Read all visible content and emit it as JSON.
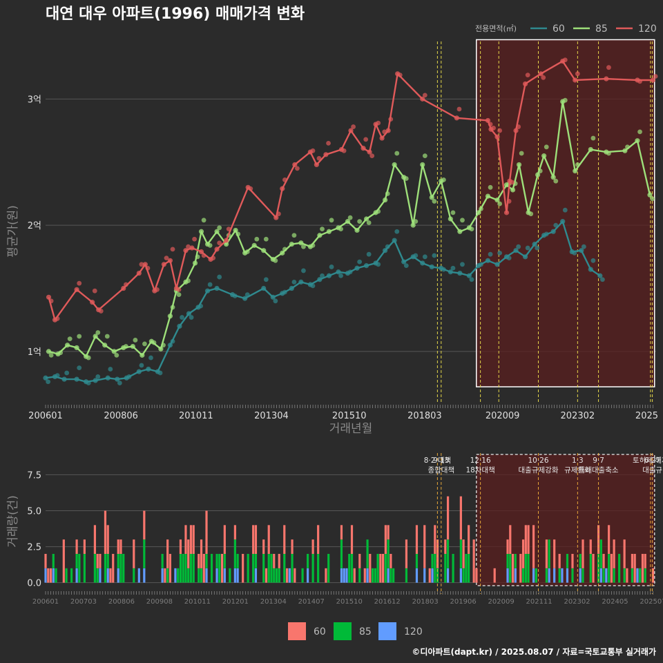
{
  "title": "대연 대우 아파트(1996) 매매가격 변화",
  "footer": "©디아파트(dapt.kr) / 2025.08.07 / 자료=국토교통부 실거래가",
  "legend_title": "전용면적(㎡)",
  "colors": {
    "bg": "#2b2b2b",
    "grid": "#575757",
    "line_60": "#2f8a8f",
    "line_85": "#9ee07a",
    "line_120": "#e05a5a",
    "bar_60": "#f8766d",
    "bar_85": "#00ba38",
    "bar_120": "#619cff",
    "highlight": "#5a1f1f",
    "policy": "#e6d84a"
  },
  "chart_data": [
    {
      "type": "line",
      "title": "대연 대우 아파트(1996) 매매가격 변화",
      "xlabel": "거래년월",
      "ylabel": "평균가(원)",
      "x_ticks": [
        "200601",
        "200806",
        "201011",
        "201304",
        "201510",
        "201803",
        "202009",
        "202302",
        "2025"
      ],
      "y_ticks": [
        {
          "value": 1,
          "label": "1억"
        },
        {
          "value": 2,
          "label": "2억"
        },
        {
          "value": 3,
          "label": "3억"
        }
      ],
      "ylim": [
        0.6,
        3.5
      ],
      "xlim": [
        2006.0,
        2025.6
      ],
      "grid": true,
      "legend_position": "top-right",
      "highlight_box": {
        "from": 2019.83,
        "to": 2025.55,
        "ymin": 0.72,
        "ymax": 3.47
      },
      "policy_lines": [
        2018.58,
        2018.7,
        2019.96,
        2020.55,
        2021.82,
        2023.08,
        2023.75,
        2025.42,
        2025.48
      ],
      "series": [
        {
          "name": "60",
          "color_key": "line_60",
          "x": [
            2006.0,
            2006.3,
            2006.6,
            2007.0,
            2007.3,
            2007.6,
            2008.0,
            2008.3,
            2008.6,
            2009.0,
            2009.3,
            2009.6,
            2010.0,
            2010.3,
            2010.6,
            2010.9,
            2011.2,
            2011.5,
            2012.0,
            2012.4,
            2013.0,
            2013.3,
            2013.6,
            2013.9,
            2014.2,
            2014.5,
            2014.8,
            2015.1,
            2015.4,
            2015.7,
            2016.0,
            2016.3,
            2016.6,
            2016.9,
            2017.2,
            2017.5,
            2017.8,
            2018.1,
            2018.4,
            2018.7,
            2019.0,
            2019.3,
            2019.6,
            2019.9,
            2020.2,
            2020.5,
            2020.8,
            2021.1,
            2021.4,
            2021.7,
            2022.0,
            2022.3,
            2022.6,
            2022.9,
            2023.2,
            2023.5,
            2023.8
          ],
          "y": [
            0.79,
            0.8,
            0.78,
            0.78,
            0.76,
            0.77,
            0.79,
            0.78,
            0.79,
            0.84,
            0.86,
            0.84,
            1.05,
            1.2,
            1.3,
            1.35,
            1.48,
            1.5,
            1.45,
            1.42,
            1.5,
            1.43,
            1.46,
            1.5,
            1.55,
            1.53,
            1.57,
            1.6,
            1.63,
            1.62,
            1.66,
            1.68,
            1.7,
            1.8,
            1.88,
            1.71,
            1.75,
            1.7,
            1.67,
            1.66,
            1.63,
            1.62,
            1.6,
            1.68,
            1.72,
            1.69,
            1.75,
            1.8,
            1.75,
            1.85,
            1.92,
            1.95,
            2.03,
            1.79,
            1.8,
            1.65,
            1.6
          ]
        },
        {
          "name": "85",
          "color_key": "line_85",
          "x": [
            2006.1,
            2006.4,
            2006.7,
            2007.0,
            2007.3,
            2007.6,
            2007.9,
            2008.2,
            2008.5,
            2008.8,
            2009.1,
            2009.4,
            2009.7,
            2010.0,
            2010.2,
            2010.5,
            2010.8,
            2011.0,
            2011.2,
            2011.5,
            2011.8,
            2012.1,
            2012.4,
            2012.7,
            2013.0,
            2013.3,
            2013.6,
            2013.9,
            2014.2,
            2014.5,
            2014.8,
            2015.1,
            2015.4,
            2015.7,
            2016.0,
            2016.3,
            2016.6,
            2016.9,
            2017.2,
            2017.5,
            2017.8,
            2018.1,
            2018.4,
            2018.7,
            2019.0,
            2019.3,
            2019.6,
            2019.9,
            2020.2,
            2020.5,
            2020.8,
            2021.0,
            2021.2,
            2021.5,
            2021.8,
            2022.0,
            2022.3,
            2022.6,
            2023.0,
            2023.5,
            2024.0,
            2024.6,
            2025.0,
            2025.4
          ],
          "y": [
            1.0,
            0.98,
            1.05,
            1.03,
            0.96,
            1.12,
            1.05,
            1.0,
            1.03,
            1.04,
            0.97,
            1.08,
            1.02,
            1.28,
            1.48,
            1.55,
            1.7,
            1.95,
            1.85,
            1.95,
            1.85,
            1.96,
            1.78,
            1.84,
            1.8,
            1.73,
            1.78,
            1.85,
            1.86,
            1.83,
            1.92,
            1.95,
            1.98,
            2.03,
            1.96,
            2.05,
            2.1,
            2.2,
            2.48,
            2.38,
            2.0,
            2.48,
            2.22,
            2.35,
            2.05,
            1.95,
            1.98,
            2.1,
            2.23,
            2.2,
            2.32,
            2.28,
            2.48,
            2.1,
            2.4,
            2.55,
            2.38,
            2.98,
            2.43,
            2.6,
            2.58,
            2.59,
            2.67,
            2.24
          ]
        },
        {
          "name": "120",
          "color_key": "line_120",
          "x": [
            2006.1,
            2006.3,
            2007.0,
            2007.5,
            2007.7,
            2008.5,
            2009.0,
            2009.2,
            2009.5,
            2009.8,
            2010.0,
            2010.2,
            2010.5,
            2010.7,
            2011.0,
            2011.3,
            2011.5,
            2011.8,
            2012.5,
            2013.4,
            2013.6,
            2014.0,
            2014.5,
            2014.7,
            2015.0,
            2015.5,
            2015.8,
            2016.2,
            2016.4,
            2016.6,
            2016.8,
            2017.0,
            2017.3,
            2018.1,
            2019.2,
            2020.2,
            2020.3,
            2020.5,
            2020.8,
            2020.9,
            2021.1,
            2021.4,
            2021.9,
            2022.6,
            2023.0,
            2024.0,
            2025.0,
            2025.5
          ],
          "y": [
            1.43,
            1.25,
            1.49,
            1.39,
            1.33,
            1.5,
            1.62,
            1.69,
            1.48,
            1.69,
            1.72,
            1.5,
            1.8,
            1.82,
            1.79,
            1.73,
            1.81,
            1.88,
            2.3,
            2.06,
            2.29,
            2.48,
            2.58,
            2.48,
            2.56,
            2.6,
            2.75,
            2.61,
            2.58,
            2.8,
            2.69,
            2.75,
            3.2,
            3.0,
            2.85,
            2.83,
            2.76,
            2.7,
            2.1,
            2.35,
            2.75,
            3.12,
            3.2,
            3.3,
            3.15,
            3.16,
            3.15,
            3.15
          ]
        }
      ]
    },
    {
      "type": "bar",
      "ylabel": "거래량(건)",
      "y_ticks": [
        {
          "value": 0,
          "label": "0.0"
        },
        {
          "value": 2.5,
          "label": "2.5"
        },
        {
          "value": 5,
          "label": "5.0"
        },
        {
          "value": 7.5,
          "label": "7.5"
        }
      ],
      "ylim": [
        -0.4,
        9.2
      ],
      "xlim": [
        2006.0,
        2025.6
      ],
      "x_ticks": [
        "200601",
        "200703",
        "200806",
        "200908",
        "201011",
        "201201",
        "201304",
        "201407",
        "201510",
        "201612",
        "201803",
        "201906",
        "202009",
        "202111",
        "202302",
        "202405",
        "202507"
      ],
      "stacked": true,
      "legend_position": "bottom",
      "highlight_box": {
        "from": 2019.83,
        "to": 2025.55
      },
      "series": [
        {
          "name": "60"
        },
        {
          "name": "85"
        },
        {
          "name": "120"
        }
      ],
      "policy_annotations": [
        {
          "x": 2018.58,
          "lines": [
            "8·2 대책"
          ]
        },
        {
          "x": 2018.7,
          "lines": [
            "9·13",
            "종합대책"
          ]
        },
        {
          "x": 2019.96,
          "lines": [
            "12·16",
            "18차대책"
          ]
        },
        {
          "x": 2021.82,
          "lines": [
            "10·26",
            "대출규제강화"
          ]
        },
        {
          "x": 2023.08,
          "lines": [
            "1·3",
            "규제완화"
          ]
        },
        {
          "x": 2023.75,
          "lines": [
            "9·7",
            "특례대출축소"
          ]
        },
        {
          "x": 2025.42,
          "lines": [
            "토허제 해제"
          ]
        },
        {
          "x": 2025.48,
          "lines": [
            "6·27",
            "대출규"
          ]
        }
      ]
    }
  ]
}
